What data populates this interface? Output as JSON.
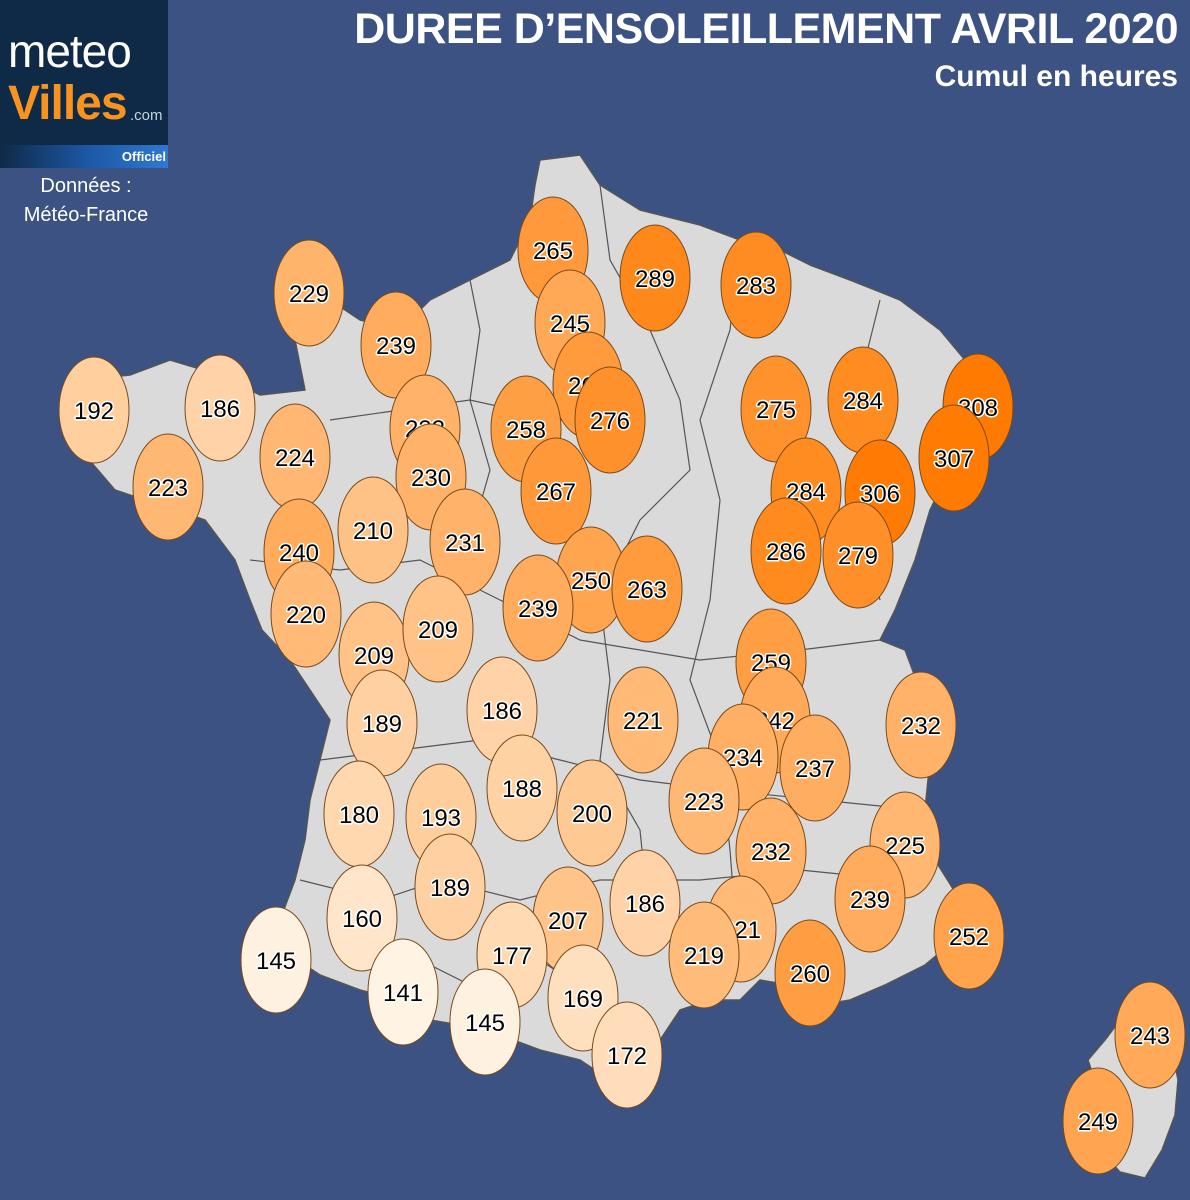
{
  "header": {
    "title": "DUREE D’ENSOLEILLEMENT AVRIL 2020",
    "subtitle": "Cumul en heures"
  },
  "logo": {
    "top_text": "meteo",
    "bottom_text": "Villes",
    "suffix": ".com",
    "badge": "Officiel"
  },
  "source": {
    "line1": "Données :",
    "line2": "Météo-France"
  },
  "colors": {
    "background": "#3b5282",
    "land": "#dadada",
    "border": "#666666",
    "scale_low": "#fff4e4",
    "scale_high": "#ff7a00"
  },
  "map_data": {
    "type": "choropleth-markers",
    "unit": "heures",
    "values": [
      265,
      289,
      283,
      229,
      239,
      245,
      263,
      276,
      192,
      186,
      232,
      258,
      275,
      284,
      308,
      307,
      224,
      223,
      230,
      267,
      284,
      306,
      240,
      210,
      231,
      250,
      263,
      286,
      279,
      220,
      239,
      209,
      209,
      259,
      232,
      189,
      186,
      221,
      242,
      234,
      237,
      180,
      193,
      188,
      200,
      223,
      232,
      225,
      160,
      189,
      207,
      186,
      221,
      239,
      252,
      145,
      177,
      219,
      260,
      141,
      169,
      145,
      172,
      243,
      249
    ]
  }
}
